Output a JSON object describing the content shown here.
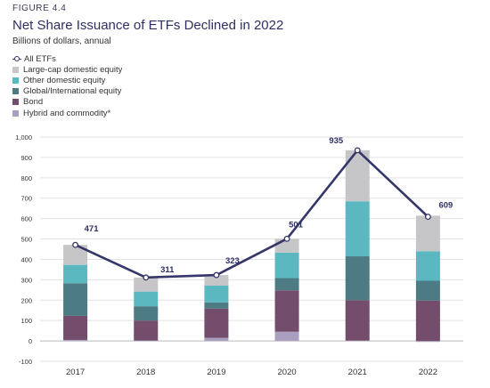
{
  "header": {
    "figure_label": "FIGURE 4.4",
    "title": "Net Share Issuance of ETFs Declined in 2022",
    "subtitle": "Billions of dollars, annual"
  },
  "legend": [
    {
      "label": "All ETFs",
      "kind": "line",
      "color": "#353669"
    },
    {
      "label": "Large-cap domestic equity",
      "kind": "bar",
      "color": "#c6c6c8"
    },
    {
      "label": "Other domestic equity",
      "kind": "bar",
      "color": "#5bb7c0"
    },
    {
      "label": "Global/International equity",
      "kind": "bar",
      "color": "#4d7b83"
    },
    {
      "label": "Bond",
      "kind": "bar",
      "color": "#744d6c"
    },
    {
      "label": "Hybrid and commodity*",
      "kind": "bar",
      "color": "#ab9fbf"
    }
  ],
  "chart_data": {
    "type": "bar",
    "stacked": true,
    "categories": [
      "2017",
      "2018",
      "2019",
      "2020",
      "2021",
      "2022"
    ],
    "ylim": [
      -100,
      1000
    ],
    "yticks": [
      "-100",
      "0",
      "100",
      "200",
      "300",
      "400",
      "500",
      "600",
      "700",
      "800",
      "900",
      "1,000"
    ],
    "ytick_values": [
      -100,
      0,
      100,
      200,
      300,
      400,
      500,
      600,
      700,
      800,
      900,
      1000
    ],
    "grid": true,
    "series": [
      {
        "name": "Hybrid and commodity*",
        "color": "#ab9fbf",
        "values": [
          5,
          2,
          15,
          45,
          2,
          -5
        ]
      },
      {
        "name": "Bond",
        "color": "#744d6c",
        "values": [
          118,
          98,
          144,
          203,
          198,
          198
        ]
      },
      {
        "name": "Global/International equity",
        "color": "#4d7b83",
        "values": [
          160,
          70,
          30,
          60,
          215,
          97
        ]
      },
      {
        "name": "Other domestic equity",
        "color": "#5bb7c0",
        "values": [
          90,
          72,
          82,
          125,
          270,
          145
        ]
      },
      {
        "name": "Large-cap domestic equity",
        "color": "#c6c6c8",
        "values": [
          98,
          69,
          52,
          68,
          250,
          174
        ]
      }
    ],
    "line": {
      "name": "All ETFs",
      "color": "#353669",
      "values": [
        471,
        311,
        323,
        501,
        935,
        609
      ],
      "labels": [
        "471",
        "311",
        "323",
        "501",
        "935",
        "609"
      ]
    }
  }
}
